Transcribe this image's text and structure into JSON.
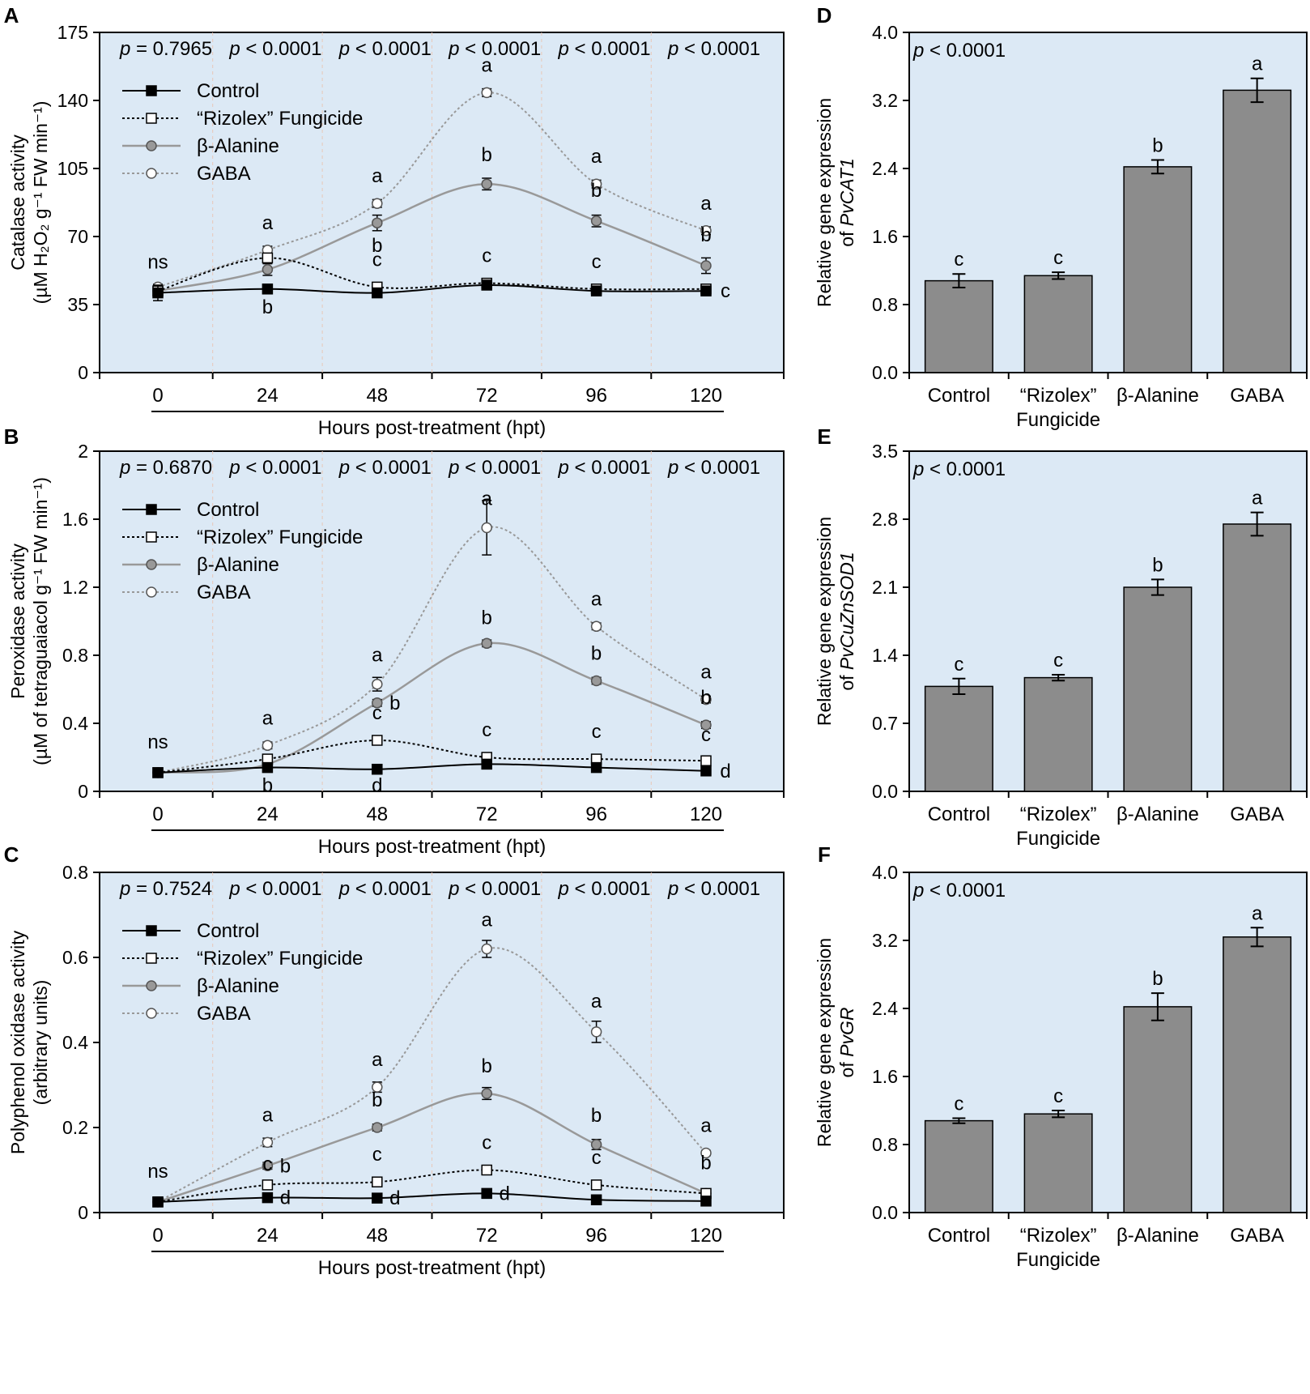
{
  "figure_title": "Antioxidant enzyme activities and gene expression",
  "chart_data": [
    {
      "id": "A",
      "type": "line",
      "panel_letter": "A",
      "ylabel": "Catalase activity",
      "ylabel_unit": "(µM H₂O₂ g⁻¹ FW min⁻¹)",
      "xlabel": "Hours post-treatment (hpt)",
      "x": [
        0,
        24,
        48,
        72,
        96,
        120
      ],
      "xticks": [
        "0",
        "24",
        "48",
        "72",
        "96",
        "120"
      ],
      "ylim": [
        0,
        175
      ],
      "yticks": [
        "0",
        "35",
        "70",
        "105",
        "140",
        "175"
      ],
      "pvalues": [
        "p = 0.7965",
        "p < 0.0001",
        "p < 0.0001",
        "p < 0.0001",
        "p < 0.0001",
        "p < 0.0001"
      ],
      "series": [
        {
          "name": "Control",
          "values": [
            41,
            43,
            41,
            45,
            42,
            42
          ],
          "errors": [
            4,
            1.5,
            1.5,
            1.5,
            1.5,
            1.5
          ],
          "letters": [
            "ns",
            "b",
            "",
            "",
            "",
            "c"
          ]
        },
        {
          "name": "“Rizolex” Fungicide",
          "values": [
            42,
            59,
            44,
            46,
            43,
            43
          ],
          "errors": [
            2,
            2,
            2,
            2,
            2,
            2
          ],
          "letters": [
            "",
            "",
            "c",
            "c",
            "c",
            ""
          ]
        },
        {
          "name": "β-Alanine",
          "values": [
            42,
            53,
            77,
            97,
            78,
            55
          ],
          "errors": [
            2,
            3,
            4,
            3,
            3,
            4
          ],
          "letters": [
            "",
            "",
            "b",
            "b",
            "b",
            "b"
          ]
        },
        {
          "name": "GABA",
          "values": [
            44,
            63,
            87,
            144,
            97,
            73
          ],
          "errors": [
            1.5,
            2,
            2,
            2,
            2,
            2
          ],
          "letters": [
            "",
            "a",
            "a",
            "a",
            "a",
            "a"
          ]
        }
      ]
    },
    {
      "id": "B",
      "type": "line",
      "panel_letter": "B",
      "ylabel": "Peroxidase activity",
      "ylabel_unit": "(µM of tetraguaiacol g⁻¹ FW min⁻¹)",
      "xlabel": "Hours post-treatment (hpt)",
      "x": [
        0,
        24,
        48,
        72,
        96,
        120
      ],
      "xticks": [
        "0",
        "24",
        "48",
        "72",
        "96",
        "120"
      ],
      "ylim": [
        0,
        2
      ],
      "yticks": [
        "0",
        "0.4",
        "0.8",
        "1.2",
        "1.6",
        "2"
      ],
      "pvalues": [
        "p = 0.6870",
        "p < 0.0001",
        "p < 0.0001",
        "p < 0.0001",
        "p < 0.0001",
        "p < 0.0001"
      ],
      "series": [
        {
          "name": "Control",
          "values": [
            0.11,
            0.14,
            0.13,
            0.16,
            0.14,
            0.12
          ],
          "errors": [
            0.01,
            0.01,
            0.01,
            0.01,
            0.01,
            0.01
          ],
          "letters": [
            "ns",
            "b",
            "d",
            "",
            "",
            "d"
          ]
        },
        {
          "name": "“Rizolex” Fungicide",
          "values": [
            0.11,
            0.19,
            0.3,
            0.2,
            0.19,
            0.18
          ],
          "errors": [
            0.01,
            0.02,
            0.02,
            0.02,
            0.02,
            0.01
          ],
          "letters": [
            "",
            "",
            "c",
            "c",
            "c",
            "c"
          ]
        },
        {
          "name": "β-Alanine",
          "values": [
            0.11,
            0.16,
            0.52,
            0.87,
            0.65,
            0.39
          ],
          "errors": [
            0.01,
            0.02,
            0.02,
            0.02,
            0.02,
            0.02
          ],
          "letters": [
            "",
            "",
            "b",
            "b",
            "b",
            "b"
          ]
        },
        {
          "name": "GABA",
          "values": [
            0.11,
            0.27,
            0.63,
            1.55,
            0.97,
            0.54
          ],
          "errors": [
            0.01,
            0.02,
            0.04,
            0.16,
            0.02,
            0.02
          ],
          "letters": [
            "",
            "a",
            "a",
            "a",
            "a",
            "a"
          ]
        }
      ]
    },
    {
      "id": "C",
      "type": "line",
      "panel_letter": "C",
      "ylabel": "Polyphenol oxidase activity",
      "ylabel_unit": "(arbitrary units)",
      "xlabel": "Hours post-treatment (hpt)",
      "x": [
        0,
        24,
        48,
        72,
        96,
        120
      ],
      "xticks": [
        "0",
        "24",
        "48",
        "72",
        "96",
        "120"
      ],
      "ylim": [
        0,
        0.8
      ],
      "yticks": [
        "0",
        "0.2",
        "0.4",
        "0.6",
        "0.8"
      ],
      "pvalues": [
        "p = 0.7524",
        "p < 0.0001",
        "p < 0.0001",
        "p < 0.0001",
        "p < 0.0001",
        "p < 0.0001"
      ],
      "series": [
        {
          "name": "Control",
          "values": [
            0.025,
            0.035,
            0.034,
            0.045,
            0.03,
            0.027
          ],
          "errors": [
            0.004,
            0.004,
            0.004,
            0.004,
            0.004,
            0.004
          ],
          "letters": [
            "ns",
            "d",
            "d",
            "d",
            "",
            ""
          ]
        },
        {
          "name": "“Rizolex” Fungicide",
          "values": [
            0.025,
            0.065,
            0.072,
            0.1,
            0.065,
            0.045
          ],
          "errors": [
            0.004,
            0.006,
            0.006,
            0.006,
            0.008,
            0.006
          ],
          "letters": [
            "",
            "c",
            "c",
            "c",
            "c",
            ""
          ]
        },
        {
          "name": "β-Alanine",
          "values": [
            0.025,
            0.11,
            0.2,
            0.28,
            0.16,
            0.045
          ],
          "errors": [
            0.004,
            0.008,
            0.008,
            0.014,
            0.012,
            0.006
          ],
          "letters": [
            "",
            "b",
            "b",
            "b",
            "b",
            "b"
          ]
        },
        {
          "name": "GABA",
          "values": [
            0.025,
            0.165,
            0.295,
            0.62,
            0.425,
            0.14
          ],
          "errors": [
            0.004,
            0.01,
            0.012,
            0.02,
            0.025,
            0.006
          ],
          "letters": [
            "",
            "a",
            "a",
            "a",
            "a",
            "a"
          ]
        }
      ]
    },
    {
      "id": "D",
      "type": "bar",
      "panel_letter": "D",
      "ylabel": "Relative gene expression",
      "ylabel_prefix": "of ",
      "gene": "PvCAT1",
      "ylim": [
        0,
        4.0
      ],
      "yticks": [
        "0.0",
        "0.8",
        "1.6",
        "2.4",
        "3.2",
        "4.0"
      ],
      "pvalue": "p < 0.0001",
      "categories": [
        "Control",
        "“Rizolex”",
        "β-Alanine",
        "GABA"
      ],
      "category_line2": [
        "",
        "Fungicide",
        "",
        ""
      ],
      "values": [
        1.08,
        1.14,
        2.42,
        3.32
      ],
      "errors": [
        0.08,
        0.04,
        0.08,
        0.14
      ],
      "letters": [
        "c",
        "c",
        "b",
        "a"
      ]
    },
    {
      "id": "E",
      "type": "bar",
      "panel_letter": "E",
      "ylabel": "Relative gene expression",
      "ylabel_prefix": "of ",
      "gene": "PvCuZnSOD1",
      "ylim": [
        0,
        3.5
      ],
      "yticks": [
        "0.0",
        "0.7",
        "1.4",
        "2.1",
        "2.8",
        "3.5"
      ],
      "pvalue": "p < 0.0001",
      "categories": [
        "Control",
        "“Rizolex”",
        "β-Alanine",
        "GABA"
      ],
      "category_line2": [
        "",
        "Fungicide",
        "",
        ""
      ],
      "values": [
        1.08,
        1.17,
        2.1,
        2.75
      ],
      "errors": [
        0.08,
        0.03,
        0.08,
        0.12
      ],
      "letters": [
        "c",
        "c",
        "b",
        "a"
      ]
    },
    {
      "id": "F",
      "type": "bar",
      "panel_letter": "F",
      "ylabel": "Relative gene expression",
      "ylabel_prefix": "of ",
      "gene": "PvGR",
      "ylim": [
        0,
        4.0
      ],
      "yticks": [
        "0.0",
        "0.8",
        "1.6",
        "2.4",
        "3.2",
        "4.0"
      ],
      "pvalue": "p < 0.0001",
      "categories": [
        "Control",
        "“Rizolex”",
        "β-Alanine",
        "GABA"
      ],
      "category_line2": [
        "",
        "Fungicide",
        "",
        ""
      ],
      "values": [
        1.08,
        1.16,
        2.42,
        3.24
      ],
      "errors": [
        0.03,
        0.04,
        0.16,
        0.11
      ],
      "letters": [
        "c",
        "c",
        "b",
        "a"
      ]
    }
  ]
}
